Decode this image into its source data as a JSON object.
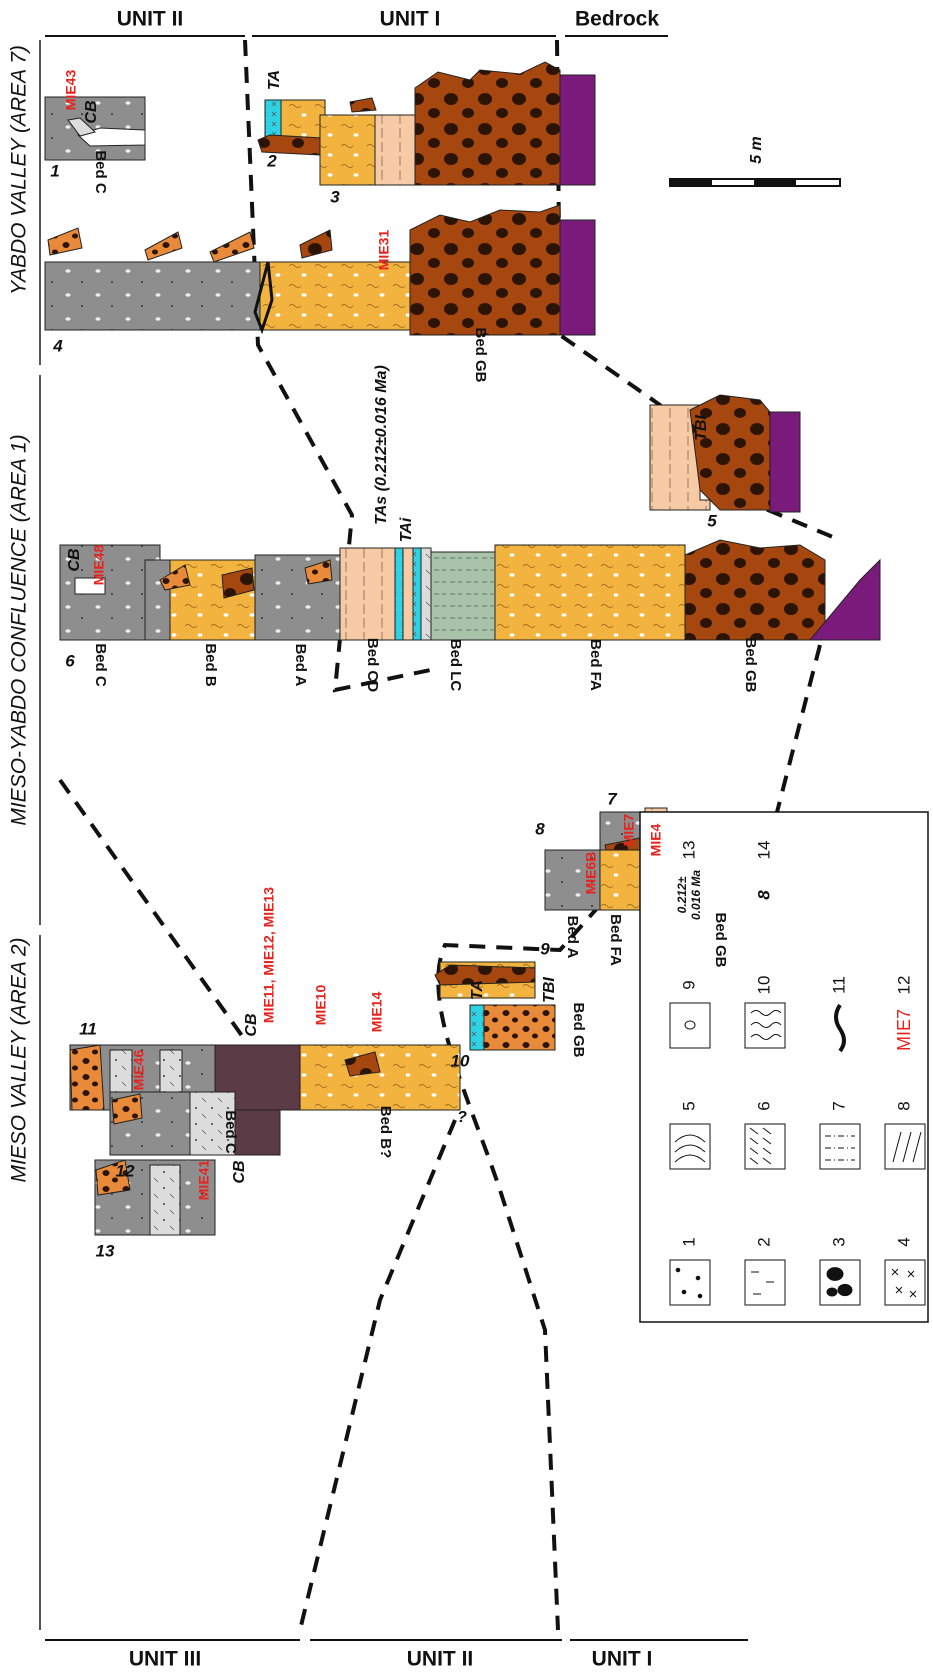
{
  "units_top": [
    "UNIT II",
    "UNIT I",
    "Bedrock"
  ],
  "units_bottom": [
    "UNIT III",
    "UNIT II",
    "UNIT I"
  ],
  "areas": [
    "YABDO VALLEY (AREA 7)",
    "MIESO-YABDO CONFLUENCE (AREA 1)",
    "MIESO VALLEY (AREA 2)"
  ],
  "sections": [
    {
      "number": "1",
      "beds": [
        "Bed C"
      ],
      "labels": [
        "CB"
      ],
      "samples": [
        "MIE43"
      ]
    },
    {
      "number": "2",
      "labels": [
        "TA"
      ]
    },
    {
      "number": "3"
    },
    {
      "number": "4",
      "beds": [
        "Bed GB"
      ],
      "samples": [
        "MIE31"
      ]
    },
    {
      "number": "5",
      "labels": [
        "TBI"
      ]
    },
    {
      "number": "6",
      "beds": [
        "Bed C",
        "Bed B",
        "Bed A",
        "Bed CD",
        "Bed LC",
        "Bed FA",
        "Bed GB"
      ],
      "labels": [
        "CB",
        "TAs (0.212±0.016 Ma)",
        "TAi"
      ],
      "samples": [
        "MIE48"
      ]
    },
    {
      "number": "7",
      "samples": [
        "MIE7",
        "MIE4"
      ]
    },
    {
      "number": "8",
      "beds": [
        "Bed A",
        "Bed FA",
        "Bed GB"
      ],
      "samples": [
        "MIE6B"
      ]
    },
    {
      "number": "9",
      "labels": [
        "TBI"
      ]
    },
    {
      "number": "10",
      "beds": [
        "Bed GB"
      ],
      "labels": [
        "TA",
        "?"
      ]
    },
    {
      "number": "11",
      "beds": [
        "Bed C",
        "Bed B?"
      ],
      "labels": [
        "CB"
      ],
      "samples": [
        "MIE11, MIE12, MIE13",
        "MIE10",
        "MIE14"
      ]
    },
    {
      "number": "12",
      "labels": [
        "CB"
      ],
      "samples": [
        "MIE46"
      ]
    },
    {
      "number": "13",
      "samples": [
        "MIE41"
      ]
    }
  ],
  "scale_bar": "5 m",
  "legend": {
    "numbers": [
      "1",
      "2",
      "3",
      "4",
      "5",
      "6",
      "7",
      "8",
      "9",
      "10",
      "11",
      "12",
      "13",
      "14"
    ],
    "age_example": [
      "0.212±",
      "0.016 Ma"
    ],
    "sample_example": "MIE7",
    "section_example": "8"
  }
}
